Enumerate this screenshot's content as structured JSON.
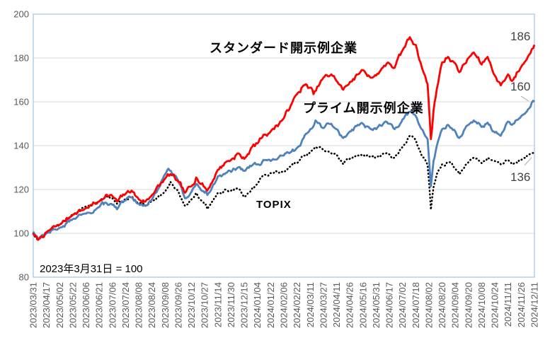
{
  "chart_data": {
    "type": "line",
    "note": "2023年3月31日 = 100",
    "x_axis": {
      "tick_labels": [
        "2023/03/31",
        "2023/04/17",
        "2023/05/02",
        "2023/05/22",
        "2023/06/06",
        "2023/06/21",
        "2023/07/06",
        "2023/07/24",
        "2023/08/08",
        "2023/08/24",
        "2023/09/08",
        "2023/09/26",
        "2023/10/12",
        "2023/10/27",
        "2023/11/14",
        "2023/11/30",
        "2023/12/15",
        "2024/01/04",
        "2024/01/22",
        "2024/02/06",
        "2024/02/22",
        "2024/03/11",
        "2024/03/27",
        "2024/04/11",
        "2024/04/26",
        "2024/05/16",
        "2024/05/31",
        "2024/06/17",
        "2024/07/02",
        "2024/07/18",
        "2024/08/02",
        "2024/08/20",
        "2024/09/04",
        "2024/09/20",
        "2024/10/08",
        "2024/10/24",
        "2024/11/11",
        "2024/11/26",
        "2024/12/11"
      ]
    },
    "y_axis": {
      "min": 80,
      "max": 200,
      "ticks": [
        80,
        100,
        120,
        140,
        160,
        180,
        200
      ]
    },
    "grid": true,
    "legend": "inline-labels",
    "colors": {
      "grid": "#D9D9D9",
      "plot_border": "#9DC3E6",
      "axis_text": "#595959",
      "leader_line": "#A6A6A6",
      "end_label_text": "#404040"
    },
    "series": [
      {
        "name": "スタンダード開示例企業",
        "color": "#FF0000",
        "style": "solid",
        "end_label": "186",
        "keyframes": [
          [
            0,
            100
          ],
          [
            0.35,
            97
          ],
          [
            1,
            100.5
          ],
          [
            2,
            104
          ],
          [
            3,
            108.5
          ],
          [
            4,
            111.5
          ],
          [
            5,
            114.5
          ],
          [
            5.5,
            117.5
          ],
          [
            6,
            117
          ],
          [
            6.35,
            114.5
          ],
          [
            7,
            118
          ],
          [
            7.45,
            119.5
          ],
          [
            8,
            115.5
          ],
          [
            8.5,
            114.5
          ],
          [
            9,
            117.5
          ],
          [
            10,
            125
          ],
          [
            10.4,
            127
          ],
          [
            11,
            123.5
          ],
          [
            11.5,
            118.5
          ],
          [
            12,
            121.5
          ],
          [
            12.35,
            125.5
          ],
          [
            13,
            121
          ],
          [
            13.2,
            119.5
          ],
          [
            14,
            129
          ],
          [
            14.6,
            132.5
          ],
          [
            15,
            133.5
          ],
          [
            15.5,
            136.5
          ],
          [
            16,
            134
          ],
          [
            16.6,
            139.5
          ],
          [
            17,
            141
          ],
          [
            17.45,
            145
          ],
          [
            18,
            146.5
          ],
          [
            19,
            152.5
          ],
          [
            19.5,
            158
          ],
          [
            20,
            163.5
          ],
          [
            20.5,
            167.5
          ],
          [
            21,
            166.5
          ],
          [
            21.25,
            163.5
          ],
          [
            22,
            171
          ],
          [
            22.6,
            172.5
          ],
          [
            23,
            169.5
          ],
          [
            23.5,
            165.5
          ],
          [
            24,
            169
          ],
          [
            24.6,
            172.5
          ],
          [
            25,
            174.5
          ],
          [
            25.5,
            171.5
          ],
          [
            26,
            172
          ],
          [
            26.6,
            176.5
          ],
          [
            27,
            177.5
          ],
          [
            27.4,
            175.5
          ],
          [
            28,
            183.5
          ],
          [
            28.55,
            189.5
          ],
          [
            29,
            186
          ],
          [
            29.45,
            176
          ],
          [
            29.9,
            168
          ],
          [
            30.15,
            143
          ],
          [
            30.35,
            156
          ],
          [
            30.6,
            166
          ],
          [
            31,
            178
          ],
          [
            31.45,
            180.5
          ],
          [
            32,
            177.5
          ],
          [
            32.3,
            173.5
          ],
          [
            33,
            180
          ],
          [
            33.4,
            182.5
          ],
          [
            34,
            177
          ],
          [
            34.45,
            180.5
          ],
          [
            35,
            172
          ],
          [
            35.45,
            167.5
          ],
          [
            36,
            172.5
          ],
          [
            36.3,
            169.5
          ],
          [
            37,
            176
          ],
          [
            37.6,
            181.5
          ],
          [
            38,
            186
          ]
        ]
      },
      {
        "name": "プライム開示例企業",
        "color": "#4F81BD",
        "style": "solid",
        "end_label": "160",
        "keyframes": [
          [
            0,
            100.8
          ],
          [
            0.35,
            97.8
          ],
          [
            1,
            100
          ],
          [
            2,
            102.5
          ],
          [
            3,
            106.5
          ],
          [
            4,
            109
          ],
          [
            5,
            112
          ],
          [
            5.5,
            114
          ],
          [
            6,
            113
          ],
          [
            6.35,
            111
          ],
          [
            7,
            115
          ],
          [
            7.45,
            116.5
          ],
          [
            8,
            113.5
          ],
          [
            8.5,
            112.5
          ],
          [
            9,
            115.5
          ],
          [
            10,
            127
          ],
          [
            10.25,
            129.5
          ],
          [
            11,
            124
          ],
          [
            11.5,
            116
          ],
          [
            12,
            119
          ],
          [
            12.35,
            122.5
          ],
          [
            13,
            118.5
          ],
          [
            13.2,
            117.5
          ],
          [
            14,
            126
          ],
          [
            14.6,
            127.5
          ],
          [
            15,
            128
          ],
          [
            15.5,
            130
          ],
          [
            16,
            128.5
          ],
          [
            16.6,
            131
          ],
          [
            17,
            131.5
          ],
          [
            17.45,
            133.5
          ],
          [
            18,
            133
          ],
          [
            19,
            135.5
          ],
          [
            19.5,
            137
          ],
          [
            20,
            139
          ],
          [
            20.5,
            143.5
          ],
          [
            21,
            147.5
          ],
          [
            21.4,
            151.5
          ],
          [
            22,
            148
          ],
          [
            22.6,
            150
          ],
          [
            23,
            147.5
          ],
          [
            23.5,
            143.5
          ],
          [
            24,
            146.5
          ],
          [
            24.6,
            149.5
          ],
          [
            25,
            150
          ],
          [
            25.5,
            148
          ],
          [
            26,
            147.5
          ],
          [
            26.6,
            150.5
          ],
          [
            27,
            150
          ],
          [
            27.4,
            147.5
          ],
          [
            28,
            152
          ],
          [
            28.55,
            155.5
          ],
          [
            29,
            153.5
          ],
          [
            29.45,
            147.5
          ],
          [
            29.9,
            143
          ],
          [
            30.15,
            121.5
          ],
          [
            30.35,
            133
          ],
          [
            30.6,
            140
          ],
          [
            31,
            147.5
          ],
          [
            31.45,
            149.5
          ],
          [
            32,
            146.5
          ],
          [
            32.3,
            143.5
          ],
          [
            33,
            149.5
          ],
          [
            33.4,
            151.5
          ],
          [
            34,
            148.5
          ],
          [
            34.45,
            150.5
          ],
          [
            35,
            146
          ],
          [
            35.45,
            144.5
          ],
          [
            36,
            151
          ],
          [
            36.3,
            149.5
          ],
          [
            37,
            153.5
          ],
          [
            37.6,
            157
          ],
          [
            37.9,
            160.5
          ],
          [
            38,
            160
          ]
        ]
      },
      {
        "name": "TOPIX",
        "color": "#000000",
        "style": "dotted",
        "end_label": "136",
        "keyframes": [
          [
            0,
            100
          ],
          [
            0.35,
            97.3
          ],
          [
            1,
            100.3
          ],
          [
            2,
            104
          ],
          [
            3,
            108.8
          ],
          [
            4,
            112.3
          ],
          [
            5,
            114.5
          ],
          [
            5.5,
            117
          ],
          [
            6,
            116
          ],
          [
            6.35,
            113.5
          ],
          [
            7,
            115.5
          ],
          [
            7.45,
            117
          ],
          [
            8,
            114
          ],
          [
            8.5,
            112.5
          ],
          [
            9,
            114.5
          ],
          [
            10,
            119
          ],
          [
            10.4,
            123.5
          ],
          [
            11,
            119
          ],
          [
            11.5,
            112.5
          ],
          [
            12,
            115.5
          ],
          [
            12.35,
            118.5
          ],
          [
            13,
            113
          ],
          [
            13.2,
            111
          ],
          [
            14,
            118.5
          ],
          [
            14.6,
            120
          ],
          [
            15,
            119.5
          ],
          [
            15.5,
            120.5
          ],
          [
            16,
            116.5
          ],
          [
            16.6,
            120.5
          ],
          [
            17,
            122.5
          ],
          [
            17.45,
            126.5
          ],
          [
            18,
            127.5
          ],
          [
            19,
            128.5
          ],
          [
            19.5,
            130.5
          ],
          [
            20,
            132
          ],
          [
            20.5,
            135.5
          ],
          [
            21,
            137
          ],
          [
            21.4,
            139.5
          ],
          [
            22,
            138
          ],
          [
            22.6,
            136.5
          ],
          [
            23,
            136
          ],
          [
            23.5,
            131.5
          ],
          [
            24,
            134
          ],
          [
            24.6,
            135.5
          ],
          [
            25,
            136
          ],
          [
            25.5,
            135
          ],
          [
            26,
            134.5
          ],
          [
            26.6,
            136.5
          ],
          [
            27,
            136
          ],
          [
            27.4,
            134.5
          ],
          [
            28,
            139.5
          ],
          [
            28.55,
            144.5
          ],
          [
            29,
            142.5
          ],
          [
            29.45,
            135.5
          ],
          [
            29.9,
            131
          ],
          [
            30.15,
            110.8
          ],
          [
            30.35,
            121
          ],
          [
            30.6,
            127
          ],
          [
            31,
            131.5
          ],
          [
            31.45,
            132.5
          ],
          [
            32,
            129.5
          ],
          [
            32.3,
            127
          ],
          [
            33,
            132.5
          ],
          [
            33.4,
            134.5
          ],
          [
            34,
            132
          ],
          [
            34.45,
            134.5
          ],
          [
            35,
            133
          ],
          [
            35.45,
            131.5
          ],
          [
            36,
            133.5
          ],
          [
            36.3,
            131.5
          ],
          [
            37,
            133.5
          ],
          [
            37.6,
            136
          ],
          [
            38,
            136.5
          ]
        ]
      }
    ]
  },
  "annotations": {
    "standard_label": "スタンダード開示例企業",
    "prime_label": "プライム開示例企業",
    "topix_label": "TOPIX",
    "note": "2023年3月31日 = 100"
  }
}
